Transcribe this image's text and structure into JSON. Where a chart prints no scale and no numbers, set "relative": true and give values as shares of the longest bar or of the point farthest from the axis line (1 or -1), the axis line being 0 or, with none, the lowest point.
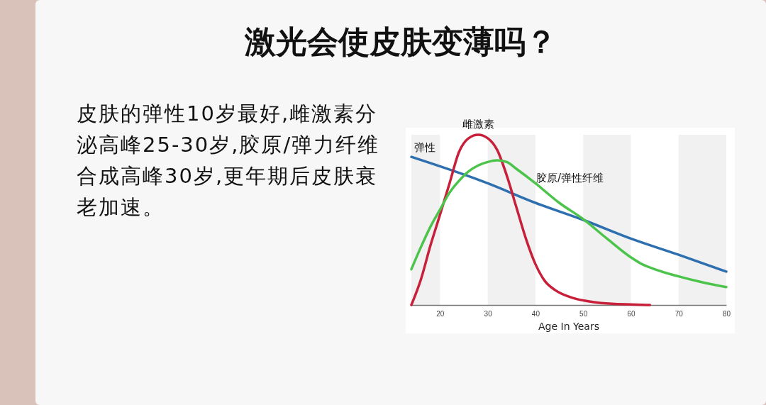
{
  "chart_data": {
    "type": "line",
    "title": "激光会使皮肤变薄吗？",
    "annotations": [
      "皮肤的弹性10岁最好,雌激素分泌高峰25-30岁,胶原/弹力纤维合成高峰30岁,更年期后皮肤衰老加速。"
    ],
    "xlabel": "Age In Years",
    "relative": true,
    "xlim": [
      14,
      80
    ],
    "xticks": [
      20,
      30,
      40,
      50,
      60,
      70,
      80
    ],
    "tick_labels": "x",
    "bands": [
      {
        "axis": "x",
        "from": 14,
        "to": 20,
        "color": "#f1f1f1"
      },
      {
        "axis": "x",
        "from": 30,
        "to": 40,
        "color": "#f1f1f1"
      },
      {
        "axis": "x",
        "from": 50,
        "to": 60,
        "color": "#f1f1f1"
      },
      {
        "axis": "x",
        "from": 70,
        "to": 80,
        "color": "#f1f1f1"
      }
    ],
    "series": [
      {
        "name": "弹性",
        "color": "#2e6fb0",
        "x": [
          14,
          30,
          40,
          50,
          60,
          70,
          80
        ],
        "values": [
          0.87,
          0.715,
          0.6,
          0.5,
          0.39,
          0.295,
          0.196
        ]
      },
      {
        "name": "雌激素",
        "color": "#c8203a",
        "x": [
          14,
          16,
          18,
          20,
          22,
          24,
          26,
          28,
          30,
          32,
          34,
          36,
          38,
          40,
          42,
          44,
          48,
          52,
          56,
          60,
          64
        ],
        "values": [
          0,
          0.15,
          0.35,
          0.53,
          0.715,
          0.9,
          0.98,
          1,
          0.98,
          0.91,
          0.76,
          0.575,
          0.39,
          0.24,
          0.14,
          0.09,
          0.04,
          0.018,
          0.007,
          0.003,
          0
        ]
      },
      {
        "name": "胶原/弹性纤维",
        "color": "#4cc44c",
        "x": [
          14,
          16,
          18,
          20,
          22,
          24,
          26,
          28,
          30,
          32,
          34,
          36,
          40,
          45,
          50,
          55,
          60,
          62,
          65,
          70,
          75,
          80
        ],
        "values": [
          0.21,
          0.34,
          0.46,
          0.56,
          0.66,
          0.73,
          0.785,
          0.82,
          0.84,
          0.85,
          0.84,
          0.8,
          0.715,
          0.6,
          0.505,
          0.39,
          0.28,
          0.245,
          0.21,
          0.168,
          0.133,
          0.105
        ]
      }
    ]
  }
}
